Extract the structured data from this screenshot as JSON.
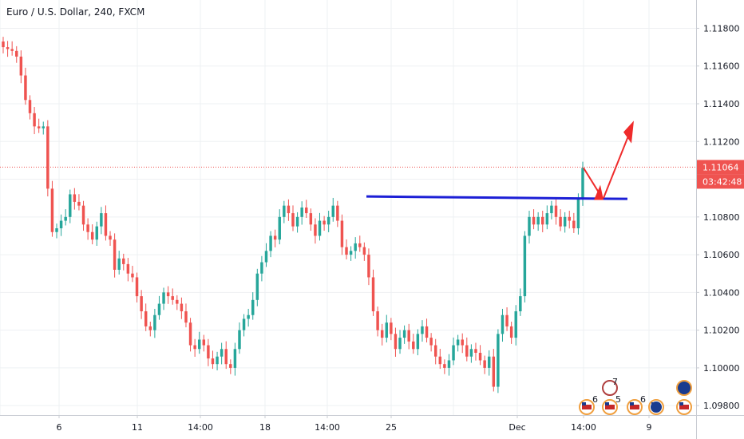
{
  "header": {
    "symbol": "Euro / U.S. Dollar, 240, FXCM"
  },
  "price_tag": {
    "price": "1.11064",
    "countdown": "03:42:48"
  },
  "colors": {
    "up": "#26a69a",
    "down": "#ef5350",
    "grid": "#eef0f3",
    "axis_border": "#c9ccd3",
    "last_price": "#ef5350",
    "trendline": "#1c1fd6",
    "arrow": "#ef2b2b"
  },
  "chart_data": {
    "type": "candlestick",
    "title": "Euro / U.S. Dollar, 240, FXCM",
    "ylim": [
      1.0975,
      1.1195
    ],
    "y_ticks": [
      "1.11800",
      "1.11600",
      "1.11400",
      "1.11200",
      "1.11000",
      "1.10800",
      "1.10600",
      "1.10400",
      "1.10200",
      "1.10000",
      "1.09800"
    ],
    "x_ticks": [
      "6",
      "11",
      "14:00",
      "18",
      "14:00",
      "25",
      "Dec",
      "14:00",
      "9"
    ],
    "last_price": 1.11064,
    "horizontal_line": {
      "value": 1.109,
      "label": ""
    },
    "closes": [
      1.117,
      1.1169,
      1.1168,
      1.1165,
      1.1155,
      1.1142,
      1.1135,
      1.1128,
      1.1127,
      1.1128,
      1.1095,
      1.1072,
      1.1074,
      1.1078,
      1.108,
      1.1092,
      1.1088,
      1.1086,
      1.1076,
      1.1072,
      1.1068,
      1.1075,
      1.1082,
      1.107,
      1.1068,
      1.1052,
      1.1058,
      1.1055,
      1.105,
      1.1048,
      1.1038,
      1.103,
      1.1022,
      1.102,
      1.1028,
      1.1034,
      1.104,
      1.1038,
      1.1036,
      1.1034,
      1.103,
      1.1024,
      1.1012,
      1.101,
      1.1015,
      1.1012,
      1.1005,
      1.1002,
      1.1006,
      1.101,
      1.1002,
      1.1,
      1.101,
      1.102,
      1.1026,
      1.1028,
      1.1036,
      1.105,
      1.1056,
      1.1062,
      1.107,
      1.1068,
      1.108,
      1.1086,
      1.1082,
      1.1075,
      1.108,
      1.1085,
      1.1082,
      1.1076,
      1.107,
      1.1078,
      1.1076,
      1.108,
      1.1086,
      1.1078,
      1.1064,
      1.106,
      1.1062,
      1.1066,
      1.1064,
      1.106,
      1.1048,
      1.103,
      1.102,
      1.1016,
      1.1024,
      1.1018,
      1.101,
      1.1016,
      1.102,
      1.1014,
      1.101,
      1.1018,
      1.1022,
      1.1016,
      1.1012,
      1.1006,
      1.1002,
      1.1,
      1.1004,
      1.1012,
      1.1015,
      1.1012,
      1.1006,
      1.101,
      1.1008,
      1.1004,
      1.1,
      1.1006,
      1.099,
      1.1018,
      1.1028,
      1.1022,
      1.1016,
      1.103,
      1.1038,
      1.107,
      1.108,
      1.1076,
      1.108,
      1.1076,
      1.1082,
      1.1086,
      1.108,
      1.1075,
      1.108,
      1.1078,
      1.1074,
      1.109,
      1.1106
    ]
  },
  "events": {
    "items": [
      "7",
      "6",
      "5",
      "6"
    ]
  }
}
